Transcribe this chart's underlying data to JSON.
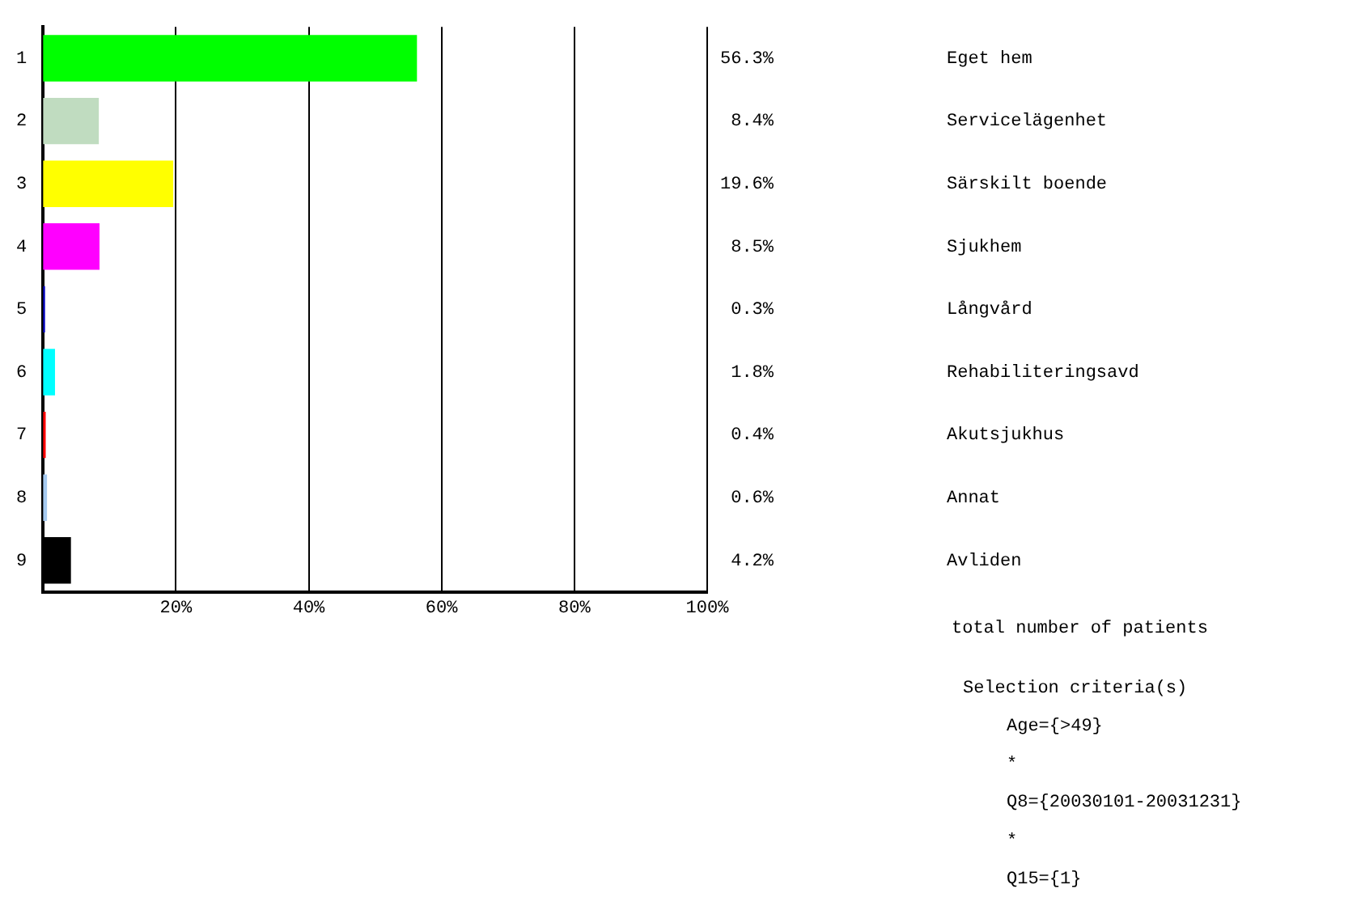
{
  "chart_data": {
    "type": "bar",
    "orientation": "horizontal",
    "categories": [
      "1",
      "2",
      "3",
      "4",
      "5",
      "6",
      "7",
      "8",
      "9"
    ],
    "values": [
      56.3,
      8.4,
      19.6,
      8.5,
      0.3,
      1.8,
      0.4,
      0.6,
      4.2
    ],
    "colors": [
      "#00ff00",
      "#c0dcc0",
      "#ffff00",
      "#ff00ff",
      "#0000c0",
      "#00ffff",
      "#ff0000",
      "#a6caf0",
      "#000000"
    ],
    "value_labels": [
      "56.3%",
      "8.4%",
      "19.6%",
      "8.5%",
      "0.3%",
      "1.8%",
      "0.4%",
      "0.6%",
      "4.2%"
    ],
    "xlim": [
      0,
      100
    ],
    "xticks": [
      {
        "value": 20,
        "label": "20%"
      },
      {
        "value": 40,
        "label": "40%"
      },
      {
        "value": 60,
        "label": "60%"
      },
      {
        "value": 80,
        "label": "80%"
      },
      {
        "value": 100,
        "label": "100%"
      }
    ],
    "grid": "x",
    "legend": false,
    "annotations": [
      "Eget hem",
      "Servicelägenhet",
      "Särskilt boende",
      "Sjukhem",
      "Långvård",
      "Rehabiliteringsavd",
      "Akutsjukhus",
      "Annat",
      "Avliden",
      "total number of patients",
      "Selection criteria(s)",
      "Age={>49}",
      "*",
      "Q8={20030101-20031231}",
      "*",
      "Q15={1}"
    ]
  }
}
